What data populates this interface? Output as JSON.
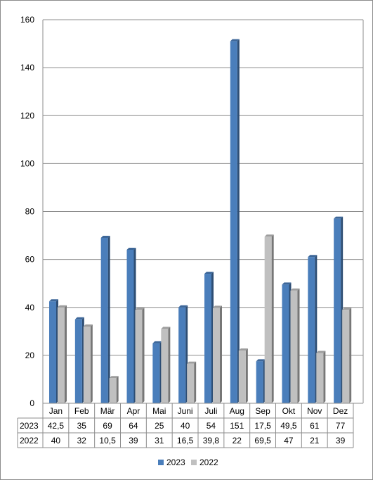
{
  "chart_data": {
    "type": "bar",
    "categories": [
      "Jan",
      "Feb",
      "Mär",
      "Apr",
      "Mai",
      "Juni",
      "Juli",
      "Aug",
      "Sep",
      "Okt",
      "Nov",
      "Dez"
    ],
    "series": [
      {
        "name": "2023",
        "values": [
          42.5,
          35,
          69,
          64,
          25,
          40,
          54,
          151,
          17.5,
          49.5,
          61,
          77
        ],
        "labels": [
          "42,5",
          "35",
          "69",
          "64",
          "25",
          "40",
          "54",
          "151",
          "17,5",
          "49,5",
          "61",
          "77"
        ],
        "color": "#4a7ebb"
      },
      {
        "name": "2022",
        "values": [
          40,
          32,
          10.5,
          39,
          31,
          16.5,
          39.8,
          22,
          69.5,
          47,
          21,
          39
        ],
        "labels": [
          "40",
          "32",
          "10,5",
          "39",
          "31",
          "16,5",
          "39,8",
          "22",
          "69,5",
          "47",
          "21",
          "39"
        ],
        "color": "#c0c0c0"
      }
    ],
    "yticks": [
      "0",
      "20",
      "40",
      "60",
      "80",
      "100",
      "120",
      "140",
      "160"
    ],
    "ylim": [
      0,
      160
    ],
    "grid": true,
    "data_table": true,
    "legend_position": "bottom"
  }
}
